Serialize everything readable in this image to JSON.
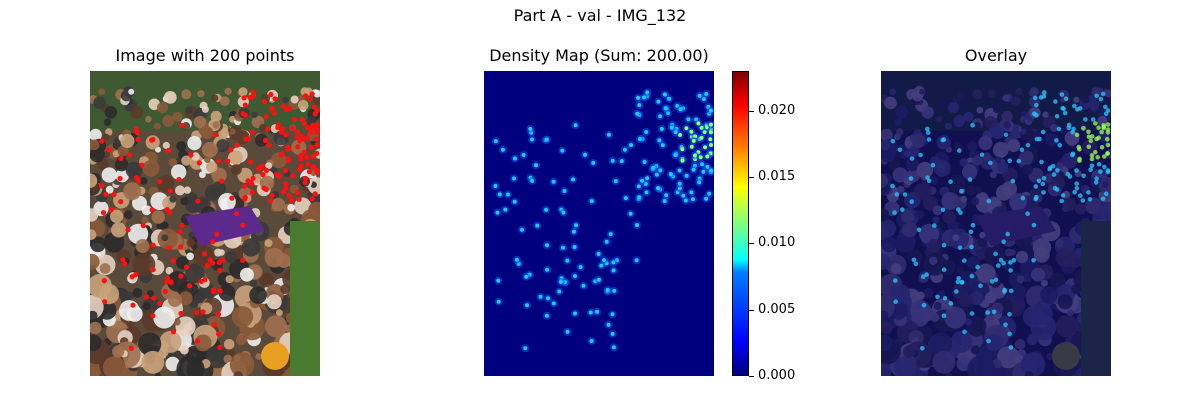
{
  "title": "Part A - val - IMG_132",
  "panels": {
    "image": {
      "title": "Image with 200 points"
    },
    "density": {
      "title": "Density Map (Sum: 200.00)"
    },
    "overlay": {
      "title": "Overlay"
    }
  },
  "colors": {
    "background_density": "#00007f",
    "point": "#28c8ff",
    "hot": "#9cff5a",
    "annotation": "#ff1010"
  },
  "chart_data": [
    {
      "type": "heatmap",
      "title": "Density Map (Sum: 200.00)",
      "sum": 200.0,
      "point_count": 200,
      "colormap": "jet",
      "colorbar": {
        "range": [
          0.0,
          0.023
        ],
        "ticks": [
          "0.000",
          "0.005",
          "0.010",
          "0.015",
          "0.020"
        ],
        "tick_values": [
          0.0,
          0.005,
          0.01,
          0.015,
          0.02
        ]
      },
      "grid": false,
      "axes": "off"
    }
  ]
}
